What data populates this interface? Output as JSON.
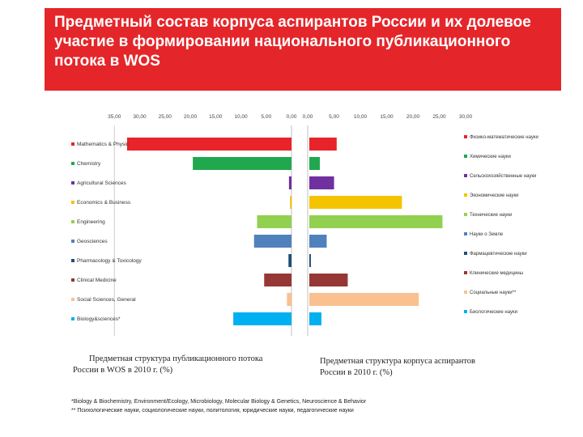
{
  "header": {
    "title": "Предметный состав корпуса аспирантов России и их долевое участие в формировании национального публикационного потока в WOS"
  },
  "chart_data": [
    {
      "type": "bar",
      "orientation": "horizontal",
      "axis_direction": "reversed",
      "xlim": [
        0,
        35
      ],
      "x_ticks": [
        "35,00",
        "30,00",
        "25,00",
        "20,00",
        "15,00",
        "10,00",
        "5,00",
        "0,00"
      ],
      "categories": [
        "Mathematics & Physic",
        "Chemistry",
        "Agricultural Sciences",
        "Economics & Business",
        "Engineering",
        "Geosciences",
        "Pharmacology & Toxicology",
        "Clinical Medicine",
        "Social Sciences, General",
        "Biology&sciences*"
      ],
      "values": [
        32.5,
        19.5,
        0.5,
        0.3,
        6.8,
        7.4,
        0.6,
        5.4,
        0.9,
        11.5
      ],
      "colors": [
        "#e8232a",
        "#21a84f",
        "#7030a0",
        "#f5c400",
        "#92d050",
        "#4f81bd",
        "#1f4e79",
        "#953735",
        "#fac090",
        "#00b0f0"
      ],
      "caption_line1": "Предметная структура публикационного потока",
      "caption_line2": "России в WOS в 2010 г. (%)"
    },
    {
      "type": "bar",
      "orientation": "horizontal",
      "xlim": [
        0,
        30
      ],
      "x_ticks": [
        "0,00",
        "5,00",
        "10,00",
        "15,00",
        "20,00",
        "25,00",
        "30,00"
      ],
      "categories": [
        "Физико-математические науки",
        "Химические науки",
        "Сельскохозяйственные науки",
        "Экономические науки",
        "Технические науки",
        "Науки о Земле",
        "Фармацевтические науки",
        "Клинические медицины",
        "Социальные науки**",
        "Биологические науки"
      ],
      "values": [
        5.2,
        2.0,
        4.7,
        17.6,
        25.3,
        3.3,
        0.3,
        7.3,
        20.8,
        2.3
      ],
      "colors": [
        "#e8232a",
        "#21a84f",
        "#7030a0",
        "#f5c400",
        "#92d050",
        "#4f81bd",
        "#1f4e79",
        "#953735",
        "#fac090",
        "#00b0f0"
      ],
      "caption_line1": "Предметная структура корпуса аспирантов",
      "caption_line2": "России в 2010 г. (%)"
    }
  ],
  "footnotes": {
    "line1": "*Biology & Biochemistry, Environment/Ecology, Microbiology, Molecular Biology & Genetics, Neuroscience & Behavior",
    "line2": "** Психологические науки, социологические науки, политология, юридические науки, педагогические науки"
  }
}
